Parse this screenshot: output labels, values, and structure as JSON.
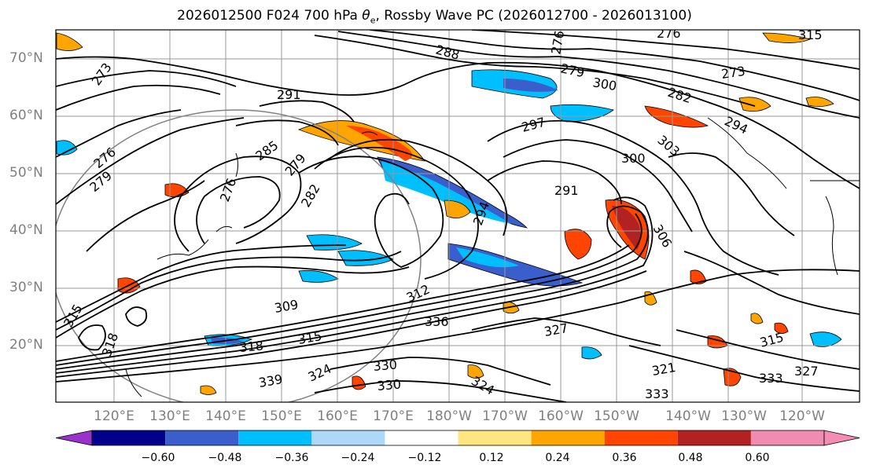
{
  "title_main": "2026012500 F024 700 hPa ",
  "title_symbol": "θ",
  "title_sub": "e",
  "title_rest": ", Rossby Wave PC (2026012700 - 2026013100)",
  "lat_labels": [
    "70°N",
    "60°N",
    "50°N",
    "40°N",
    "30°N",
    "20°N"
  ],
  "lon_labels": [
    "120°E",
    "130°E",
    "140°E",
    "150°E",
    "160°E",
    "170°E",
    "180°W",
    "170°W",
    "160°W",
    "150°W",
    "140°W",
    "130°W",
    "120°W"
  ],
  "contour_labels": [
    "288",
    "276",
    "279",
    "285",
    "282",
    "276",
    "273",
    "291",
    "297",
    "294",
    "303",
    "300",
    "291",
    "306",
    "285",
    "276",
    "279",
    "282",
    "291",
    "294",
    "309",
    "312",
    "315",
    "318",
    "336",
    "327",
    "330",
    "339",
    "324",
    "327",
    "330",
    "333",
    "315",
    "321",
    "327",
    "333",
    "315",
    "276",
    "279",
    "294",
    "273"
  ],
  "colorbar": {
    "ticks": [
      "−0.60",
      "−0.48",
      "−0.36",
      "−0.24",
      "−0.12",
      "0.12",
      "0.24",
      "0.36",
      "0.48",
      "0.60"
    ],
    "colors": [
      "#9932cc",
      "#00008b",
      "#3a5fcd",
      "#00bfff",
      "#add8f8",
      "#ffffff",
      "#ffe680",
      "#ffa500",
      "#ff4500",
      "#b22222",
      "#f08cb0",
      "#f58cb4"
    ]
  }
}
